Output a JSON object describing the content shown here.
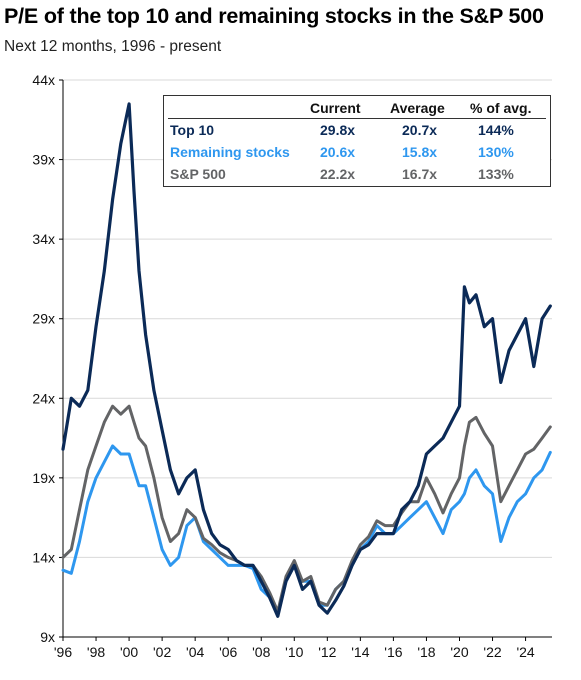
{
  "title": "P/E of the top 10 and remaining stocks in the S&P 500",
  "subtitle": "Next 12 months, 1996 - present",
  "colors": {
    "top10": "#0b2a57",
    "remaining": "#2e97ef",
    "sp500": "#636466",
    "gridline": "#d9d9d9",
    "axis": "#000000"
  },
  "table": {
    "headers": [
      "Current",
      "Average",
      "% of avg."
    ],
    "rows": [
      {
        "name": "Top 10",
        "current": "29.8x",
        "average": "20.7x",
        "pct": "144%",
        "color": "#0b2a57"
      },
      {
        "name": "Remaining stocks",
        "current": "20.6x",
        "average": "15.8x",
        "pct": "130%",
        "color": "#2e97ef"
      },
      {
        "name": "S&P 500",
        "current": "22.2x",
        "average": "16.7x",
        "pct": "133%",
        "color": "#636466"
      }
    ]
  },
  "chart_data": {
    "type": "line",
    "title": "P/E of the top 10 and remaining stocks in the S&P 500",
    "subtitle": "Next 12 months, 1996 - present",
    "xlabel": "",
    "ylabel": "",
    "xlim": [
      1996.0,
      2025.6
    ],
    "ylim": [
      9,
      44
    ],
    "y_ticks": [
      9,
      14,
      19,
      24,
      29,
      34,
      39,
      44
    ],
    "y_tick_labels": [
      "9x",
      "14x",
      "19x",
      "24x",
      "29x",
      "34x",
      "39x",
      "44x"
    ],
    "x_ticks": [
      1996,
      1998,
      2000,
      2002,
      2004,
      2006,
      2008,
      2010,
      2012,
      2014,
      2016,
      2018,
      2020,
      2022,
      2024
    ],
    "x_tick_labels": [
      "'96",
      "'98",
      "'00",
      "'02",
      "'04",
      "'06",
      "'08",
      "'10",
      "'12",
      "'14",
      "'16",
      "'18",
      "'20",
      "'22",
      "'24"
    ],
    "grid": true,
    "legend": "table, top-right",
    "x": [
      1996.0,
      1996.5,
      1997.0,
      1997.5,
      1998.0,
      1998.5,
      1999.0,
      1999.5,
      2000.0,
      2000.3,
      2000.6,
      2001.0,
      2001.5,
      2002.0,
      2002.5,
      2003.0,
      2003.5,
      2004.0,
      2004.5,
      2005.0,
      2005.5,
      2006.0,
      2006.5,
      2007.0,
      2007.5,
      2008.0,
      2008.5,
      2009.0,
      2009.5,
      2010.0,
      2010.5,
      2011.0,
      2011.5,
      2012.0,
      2012.5,
      2013.0,
      2013.5,
      2014.0,
      2014.5,
      2015.0,
      2015.5,
      2016.0,
      2016.5,
      2017.0,
      2017.5,
      2018.0,
      2018.5,
      2019.0,
      2019.5,
      2020.0,
      2020.3,
      2020.6,
      2021.0,
      2021.5,
      2022.0,
      2022.5,
      2023.0,
      2023.5,
      2024.0,
      2024.5,
      2025.0,
      2025.5
    ],
    "series": [
      {
        "name": "Top 10",
        "color": "#0b2a57",
        "values": [
          20.8,
          24.0,
          23.5,
          24.5,
          28.5,
          32.0,
          36.5,
          40.0,
          42.5,
          37.0,
          32.0,
          28.0,
          24.5,
          22.0,
          19.5,
          18.0,
          19.0,
          19.5,
          17.0,
          15.5,
          14.8,
          14.5,
          13.8,
          13.5,
          13.5,
          12.5,
          11.5,
          10.3,
          12.5,
          13.5,
          12.0,
          12.5,
          11.0,
          10.5,
          11.3,
          12.2,
          13.5,
          14.5,
          14.8,
          15.5,
          15.5,
          15.5,
          17.0,
          17.5,
          18.5,
          20.5,
          21.0,
          21.5,
          22.5,
          23.5,
          31.0,
          30.0,
          30.5,
          28.5,
          29.0,
          25.0,
          27.0,
          28.0,
          29.0,
          26.0,
          29.0,
          29.8
        ]
      },
      {
        "name": "Remaining stocks",
        "color": "#2e97ef",
        "values": [
          13.2,
          13.0,
          15.0,
          17.5,
          19.0,
          20.0,
          21.0,
          20.5,
          20.5,
          19.5,
          18.5,
          18.5,
          16.5,
          14.5,
          13.5,
          14.0,
          16.0,
          16.5,
          15.0,
          14.5,
          14.0,
          13.5,
          13.5,
          13.5,
          13.3,
          12.0,
          11.5,
          10.4,
          12.5,
          13.5,
          12.5,
          12.5,
          11.0,
          11.0,
          12.0,
          12.5,
          13.5,
          14.5,
          15.0,
          16.0,
          15.5,
          15.5,
          16.0,
          16.5,
          17.0,
          17.5,
          16.5,
          15.5,
          17.0,
          17.5,
          18.0,
          19.0,
          19.5,
          18.5,
          18.0,
          15.0,
          16.5,
          17.5,
          18.0,
          19.0,
          19.5,
          20.6
        ]
      },
      {
        "name": "S&P 500",
        "color": "#636466",
        "values": [
          14.0,
          14.5,
          17.0,
          19.5,
          21.0,
          22.5,
          23.5,
          23.0,
          23.5,
          22.5,
          21.5,
          21.0,
          19.0,
          16.5,
          15.0,
          15.5,
          17.0,
          16.5,
          15.2,
          14.8,
          14.3,
          14.0,
          13.8,
          13.5,
          13.5,
          12.8,
          11.8,
          10.6,
          12.8,
          13.8,
          12.5,
          12.8,
          11.2,
          11.0,
          12.0,
          12.5,
          13.8,
          14.8,
          15.3,
          16.3,
          16.0,
          16.0,
          16.8,
          17.5,
          17.5,
          19.0,
          18.0,
          16.8,
          18.0,
          19.0,
          21.0,
          22.5,
          22.8,
          21.8,
          21.0,
          17.5,
          18.5,
          19.5,
          20.5,
          20.8,
          21.5,
          22.2
        ]
      }
    ]
  }
}
